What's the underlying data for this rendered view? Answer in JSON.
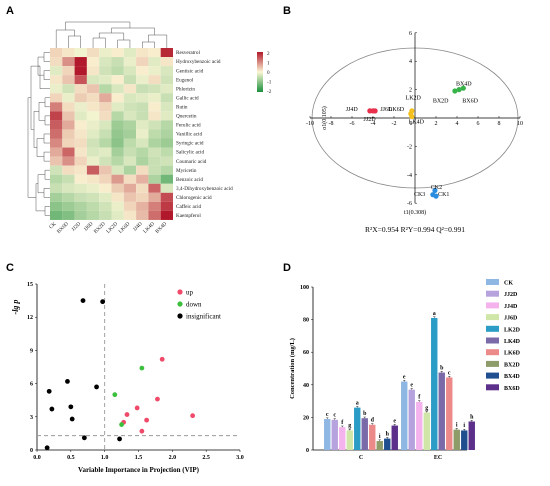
{
  "panels": {
    "a": "A",
    "b": "B",
    "c": "C",
    "d": "D"
  },
  "chart_data": [
    {
      "type": "heatmap",
      "panel": "A",
      "rows": [
        "Resveratrol",
        "Hydroxybenzoic acid",
        "Gentisic acid",
        "Eugenol",
        "Phlorizin",
        "Gallic acid",
        "Rutin",
        "Quercetin",
        "Ferulic acid",
        "Vanillic acid",
        "Syringic acid",
        "Salicylic acid",
        "Coumaric acid",
        "Myricetin",
        "Benzoic acid",
        "3,4-Dihydroxybenzoic acid",
        "Chlorogenic acid",
        "Caffeic acid",
        "Kaempferol"
      ],
      "columns": [
        "CK",
        "BX6D",
        "JJ2D",
        "JJ6D",
        "BX2D",
        "LK2D",
        "LK6D",
        "JJ4D",
        "LK4D",
        "BX4D"
      ],
      "values": [
        [
          0.4,
          0.2,
          -0.1,
          0.3,
          -0.2,
          0.1,
          -0.3,
          0.2,
          0.1,
          2.4
        ],
        [
          0.3,
          1.2,
          2.8,
          0.1,
          -0.4,
          -0.6,
          -0.2,
          0.4,
          -0.3,
          0.2
        ],
        [
          -0.3,
          0.4,
          2.6,
          0.2,
          -0.5,
          -0.7,
          -0.4,
          0.1,
          -0.2,
          -0.4
        ],
        [
          0.2,
          0.6,
          1.9,
          -0.4,
          -0.3,
          0.1,
          -0.6,
          -0.2,
          0.3,
          -0.5
        ],
        [
          -0.2,
          -0.5,
          0.3,
          0.6,
          -0.8,
          -0.4,
          0.2,
          -0.6,
          -0.5,
          -0.3
        ],
        [
          0.4,
          -0.2,
          0.5,
          0.3,
          0.9,
          0.1,
          -0.4,
          -0.3,
          -0.2,
          -0.6
        ],
        [
          1.4,
          0.3,
          -0.2,
          0.2,
          0.4,
          -0.3,
          -0.5,
          -0.6,
          0.1,
          -0.4
        ],
        [
          2.1,
          0.6,
          -0.3,
          -0.1,
          0.3,
          -0.8,
          -0.4,
          -0.6,
          0.2,
          -0.3
        ],
        [
          1.8,
          0.9,
          0.1,
          -0.2,
          -0.4,
          -1.1,
          -0.9,
          -0.3,
          -0.5,
          -0.8
        ],
        [
          1.6,
          0.5,
          0.2,
          -0.3,
          -0.6,
          -1.2,
          -1.0,
          -0.2,
          -0.7,
          -0.9
        ],
        [
          1.3,
          0.4,
          0.3,
          -0.5,
          -0.8,
          -1.3,
          -0.7,
          -0.4,
          -0.9,
          -1.1
        ],
        [
          0.9,
          1.7,
          0.2,
          -0.4,
          -0.3,
          -1.0,
          -0.6,
          -0.8,
          -0.5,
          -0.7
        ],
        [
          0.6,
          1.2,
          0.4,
          -0.2,
          -0.5,
          -0.8,
          -0.4,
          -0.9,
          -0.6,
          -0.5
        ],
        [
          -0.5,
          0.3,
          0.2,
          1.8,
          0.6,
          -0.4,
          -0.9,
          0.3,
          -0.6,
          -0.8
        ],
        [
          -0.8,
          -0.6,
          0.1,
          0.2,
          0.4,
          1.1,
          0.3,
          0.8,
          -0.9,
          -1.6
        ],
        [
          -0.6,
          -0.4,
          -0.3,
          -0.2,
          0.1,
          0.5,
          0.9,
          0.3,
          1.7,
          -0.4
        ],
        [
          -1.0,
          -0.8,
          -0.6,
          -0.5,
          -0.3,
          0.2,
          0.6,
          0.4,
          0.9,
          2.0
        ],
        [
          -1.3,
          -1.1,
          -0.9,
          -0.7,
          -0.5,
          -0.2,
          0.4,
          0.8,
          1.4,
          2.2
        ],
        [
          -1.6,
          -1.4,
          -1.0,
          -0.8,
          -0.6,
          -0.3,
          0.2,
          0.7,
          1.6,
          2.6
        ]
      ],
      "legend_ticks": [
        "2",
        "1",
        "0",
        "-1",
        "-2"
      ],
      "colors": {
        "high": "#b2182b",
        "mid": "#fbf7d5",
        "low": "#1a8f3c"
      }
    },
    {
      "type": "scatter",
      "panel": "B",
      "xlim": [
        -10,
        10
      ],
      "ylim": [
        -6,
        6
      ],
      "xticks": [
        -10,
        -8,
        -6,
        -4,
        -2,
        2,
        4,
        6,
        8,
        10
      ],
      "yticks": [
        6,
        4,
        2,
        -2,
        -4,
        -6
      ],
      "xlabel": "t1(0.308)",
      "ylabel": "o1(0.105)",
      "x0_label": "0",
      "groups": [
        {
          "color": "#e8304c",
          "points": [
            [
              -4.3,
              0.5
            ],
            [
              -4.0,
              0.5
            ],
            [
              -3.8,
              0.5
            ]
          ],
          "labels": [
            {
              "text": "JJ4D",
              "at": [
                -6.6,
                0.5
              ]
            },
            {
              "text": "JJ6D",
              "at": [
                -3.3,
                0.5
              ]
            },
            {
              "text": "JJ2D",
              "at": [
                -4.9,
                -0.2
              ]
            }
          ]
        },
        {
          "color": "#f3c01e",
          "points": [
            [
              -0.3,
              0.5
            ],
            [
              -0.3,
              0.1
            ],
            [
              -0.4,
              0.3
            ]
          ],
          "labels": [
            {
              "text": "LK2D",
              "at": [
                -0.9,
                1.3
              ]
            },
            {
              "text": "LK6D",
              "at": [
                -2.5,
                0.5
              ]
            },
            {
              "text": "LK4D",
              "at": [
                -0.6,
                -0.4
              ]
            }
          ]
        },
        {
          "color": "#37b34a",
          "points": [
            [
              3.8,
              1.9
            ],
            [
              4.2,
              2.0
            ],
            [
              4.6,
              2.1
            ]
          ],
          "labels": [
            {
              "text": "BX4D",
              "at": [
                3.9,
                2.3
              ]
            },
            {
              "text": "BX2D",
              "at": [
                1.7,
                1.1
              ]
            },
            {
              "text": "BX6D",
              "at": [
                4.5,
                1.1
              ]
            }
          ]
        },
        {
          "color": "#2b8de0",
          "points": [
            [
              1.9,
              -5.1
            ],
            [
              1.7,
              -5.4
            ],
            [
              2.0,
              -5.5
            ]
          ],
          "labels": [
            {
              "text": "CK2",
              "at": [
                1.5,
                -5.0
              ]
            },
            {
              "text": "CK3",
              "at": [
                -0.1,
                -5.5
              ]
            },
            {
              "text": "CK1",
              "at": [
                2.2,
                -5.5
              ]
            }
          ]
        }
      ],
      "metrics": "R²X=0.954  R²Y=0.994  Q²=0.991"
    },
    {
      "type": "scatter",
      "panel": "C",
      "xlim": [
        0.0,
        3.0
      ],
      "ylim": [
        0,
        15
      ],
      "xticks": [
        "0.0",
        "0.5",
        "1.0",
        "1.5",
        "2.0",
        "2.5",
        "3.0"
      ],
      "yticks": [
        "0",
        "3",
        "6",
        "9",
        "12",
        "15"
      ],
      "xlabel": "Variable Importance in Projection (VIP)",
      "ylabel": "-lg p",
      "thresholds": {
        "vip": 1.0,
        "lgp": 1.3
      },
      "series": [
        {
          "name": "up",
          "color": "#f04a6a",
          "points": [
            [
              1.28,
              2.5
            ],
            [
              1.33,
              3.2
            ],
            [
              1.48,
              3.8
            ],
            [
              1.55,
              1.7
            ],
            [
              1.62,
              2.7
            ],
            [
              1.78,
              4.6
            ],
            [
              1.85,
              8.2
            ],
            [
              2.3,
              3.1
            ]
          ]
        },
        {
          "name": "down",
          "color": "#3cbf3c",
          "points": [
            [
              1.15,
              5.0
            ],
            [
              1.25,
              2.3
            ],
            [
              1.55,
              7.4
            ]
          ]
        },
        {
          "name": "insignificant",
          "color": "#000000",
          "points": [
            [
              0.15,
              0.2
            ],
            [
              0.18,
              5.3
            ],
            [
              0.22,
              3.7
            ],
            [
              0.45,
              6.2
            ],
            [
              0.5,
              3.9
            ],
            [
              0.52,
              2.8
            ],
            [
              0.68,
              13.5
            ],
            [
              0.7,
              1.1
            ],
            [
              0.88,
              5.7
            ],
            [
              0.97,
              13.4
            ],
            [
              1.22,
              1.0
            ]
          ]
        }
      ]
    },
    {
      "type": "bar",
      "panel": "D",
      "categories": [
        "C",
        "EC"
      ],
      "ylabel": "Concentration (mg/L)",
      "ylim": [
        0,
        100
      ],
      "yticks": [
        "0",
        "20",
        "40",
        "60",
        "80",
        "100"
      ],
      "series": [
        {
          "name": "CK",
          "color": "#8fb7e3",
          "values": [
            19,
            42
          ],
          "letters": [
            "c",
            "e"
          ]
        },
        {
          "name": "JJ2D",
          "color": "#b6a3dd",
          "values": [
            18.5,
            37
          ],
          "letters": [
            "c",
            "e"
          ]
        },
        {
          "name": "JJ4D",
          "color": "#f5b3ee",
          "values": [
            14,
            29.5
          ],
          "letters": [
            "f",
            "f"
          ]
        },
        {
          "name": "JJ6D",
          "color": "#cfe6a8",
          "values": [
            12,
            23
          ],
          "letters": [
            "g",
            "g"
          ]
        },
        {
          "name": "LK2D",
          "color": "#2a9cc6",
          "values": [
            26,
            81
          ],
          "letters": [
            "a",
            "a"
          ]
        },
        {
          "name": "LK4D",
          "color": "#7a6aa8",
          "values": [
            19.5,
            47.5
          ],
          "letters": [
            "b",
            "b"
          ]
        },
        {
          "name": "LK6D",
          "color": "#ec8a8a",
          "values": [
            15.5,
            44.5
          ],
          "letters": [
            "d",
            "c"
          ]
        },
        {
          "name": "BX2D",
          "color": "#8e9c6a",
          "values": [
            5.5,
            12.5
          ],
          "letters": [
            "i",
            "i"
          ]
        },
        {
          "name": "BX4D",
          "color": "#1f4f8f",
          "values": [
            7,
            12
          ],
          "letters": [
            "h",
            "i"
          ]
        },
        {
          "name": "BX6D",
          "color": "#5b2f8a",
          "values": [
            15,
            17.5
          ],
          "letters": [
            "e",
            "h"
          ]
        }
      ]
    }
  ]
}
